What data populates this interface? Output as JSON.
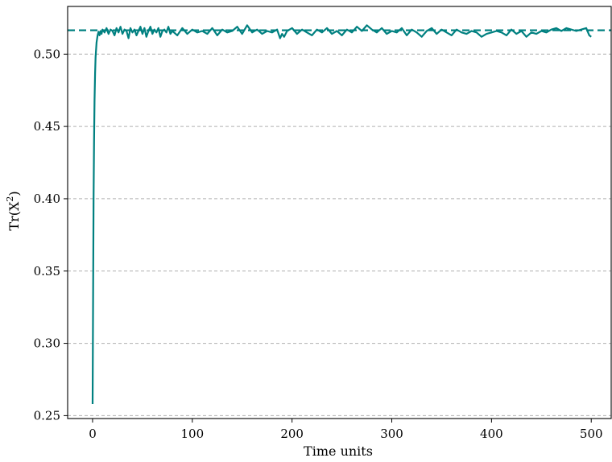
{
  "chart_data": {
    "type": "line",
    "xlabel": "Time units",
    "ylabel_base": "Tr(X",
    "ylabel_sup": "2",
    "ylabel_close": ")",
    "xlim": [
      -25,
      520
    ],
    "ylim": [
      0.248,
      0.533
    ],
    "x_ticks": [
      0,
      100,
      200,
      300,
      400,
      500
    ],
    "x_tick_labels": [
      "0",
      "100",
      "200",
      "300",
      "400",
      "500"
    ],
    "y_ticks": [
      0.25,
      0.3,
      0.35,
      0.4,
      0.45,
      0.5
    ],
    "y_tick_labels": [
      "0.25",
      "0.30",
      "0.35",
      "0.40",
      "0.45",
      "0.50"
    ],
    "grid": "horizontal dashed",
    "series": [
      {
        "style": "solid",
        "color": "#008080",
        "x": [
          0,
          0.5,
          1,
          1.5,
          2,
          2.5,
          3,
          4,
          5,
          6,
          7,
          8,
          9,
          10,
          12,
          14,
          16,
          18,
          20,
          22,
          24,
          26,
          28,
          30,
          32,
          34,
          36,
          38,
          40,
          42,
          44,
          46,
          48,
          50,
          52,
          54,
          56,
          58,
          60,
          62,
          64,
          66,
          68,
          70,
          72,
          74,
          76,
          78,
          80,
          85,
          90,
          95,
          100,
          105,
          110,
          115,
          120,
          125,
          130,
          135,
          140,
          145,
          150,
          155,
          160,
          165,
          170,
          175,
          180,
          185,
          188,
          190,
          192,
          195,
          200,
          205,
          210,
          215,
          220,
          225,
          230,
          235,
          240,
          245,
          250,
          255,
          260,
          265,
          270,
          275,
          280,
          285,
          290,
          295,
          300,
          305,
          310,
          315,
          320,
          325,
          330,
          335,
          340,
          345,
          350,
          355,
          360,
          365,
          370,
          375,
          380,
          385,
          390,
          395,
          400,
          405,
          410,
          415,
          420,
          425,
          430,
          435,
          440,
          445,
          450,
          455,
          460,
          465,
          470,
          475,
          480,
          485,
          490,
          495,
          498,
          500
        ],
        "values": [
          0.258,
          0.33,
          0.4,
          0.44,
          0.468,
          0.487,
          0.498,
          0.508,
          0.513,
          0.5155,
          0.513,
          0.516,
          0.514,
          0.517,
          0.515,
          0.518,
          0.514,
          0.517,
          0.516,
          0.513,
          0.518,
          0.515,
          0.519,
          0.514,
          0.517,
          0.516,
          0.511,
          0.518,
          0.515,
          0.517,
          0.513,
          0.516,
          0.519,
          0.514,
          0.518,
          0.512,
          0.516,
          0.519,
          0.514,
          0.517,
          0.515,
          0.518,
          0.512,
          0.516,
          0.517,
          0.515,
          0.519,
          0.514,
          0.516,
          0.513,
          0.518,
          0.514,
          0.517,
          0.515,
          0.516,
          0.514,
          0.518,
          0.513,
          0.517,
          0.515,
          0.516,
          0.519,
          0.514,
          0.52,
          0.515,
          0.517,
          0.514,
          0.516,
          0.515,
          0.517,
          0.511,
          0.514,
          0.512,
          0.516,
          0.518,
          0.514,
          0.517,
          0.515,
          0.513,
          0.517,
          0.515,
          0.518,
          0.514,
          0.516,
          0.513,
          0.517,
          0.515,
          0.519,
          0.516,
          0.52,
          0.517,
          0.515,
          0.518,
          0.514,
          0.516,
          0.515,
          0.518,
          0.513,
          0.517,
          0.515,
          0.512,
          0.516,
          0.518,
          0.514,
          0.517,
          0.515,
          0.513,
          0.517,
          0.515,
          0.514,
          0.516,
          0.515,
          0.512,
          0.514,
          0.515,
          0.516,
          0.515,
          0.513,
          0.517,
          0.514,
          0.516,
          0.512,
          0.515,
          0.514,
          0.516,
          0.515,
          0.517,
          0.518,
          0.516,
          0.518,
          0.517,
          0.516,
          0.517,
          0.518,
          0.513,
          0.512
        ]
      },
      {
        "style": "dashed",
        "color": "#008080",
        "x": [
          -25,
          520
        ],
        "values": [
          0.5165,
          0.5165
        ]
      }
    ]
  }
}
